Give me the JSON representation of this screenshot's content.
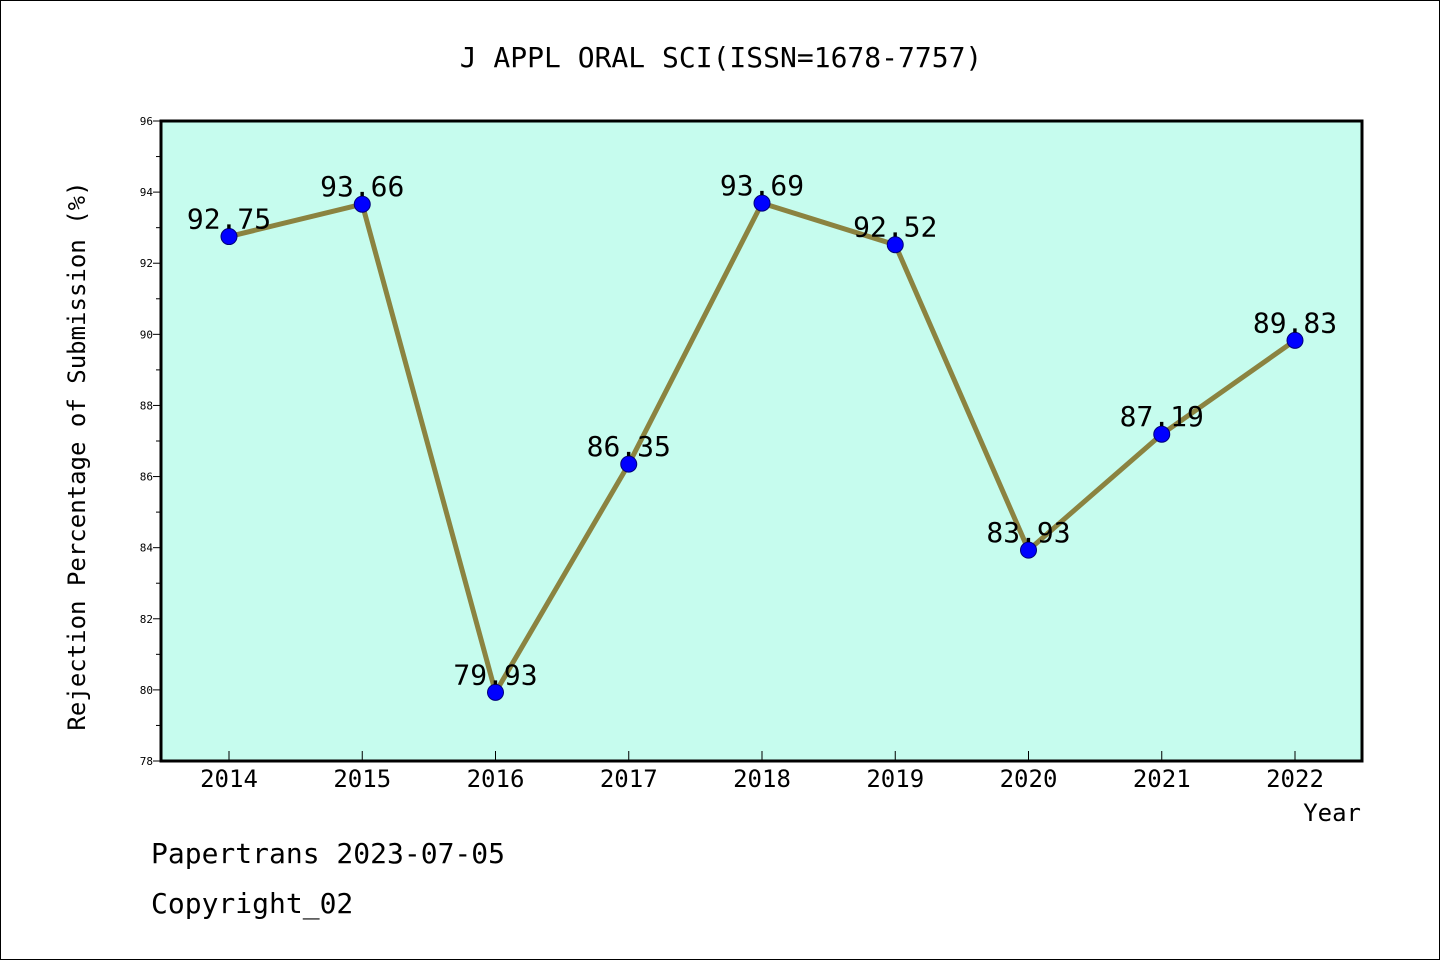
{
  "chart_data": {
    "type": "line",
    "title": "J APPL ORAL SCI(ISSN=1678-7757)",
    "xlabel": "Year",
    "ylabel": "Rejection Percentage of Submission (%)",
    "categories": [
      "2014",
      "2015",
      "2016",
      "2017",
      "2018",
      "2019",
      "2020",
      "2021",
      "2022"
    ],
    "values": [
      92.75,
      93.66,
      79.93,
      86.35,
      93.69,
      92.52,
      83.93,
      87.19,
      89.83
    ],
    "value_labels": [
      "92.75",
      "93.66",
      "79.93",
      "86.35",
      "93.69",
      "92.52",
      "83.93",
      "87.19",
      "89.83"
    ],
    "ylim": [
      78,
      96
    ],
    "yticks": [
      "78",
      "80",
      "82",
      "84",
      "86",
      "88",
      "90",
      "92",
      "94",
      "96"
    ],
    "grid": false,
    "colors": {
      "plot_background": "#c6fcee",
      "line": "#8b8340",
      "marker": "#0000ff"
    }
  },
  "footer": {
    "line1": "Papertrans 2023-07-05",
    "line2": "Copyright_02"
  }
}
